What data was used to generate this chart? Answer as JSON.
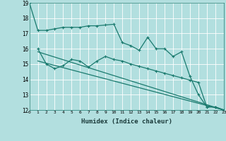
{
  "background_color": "#b2dfdf",
  "grid_color": "#ffffff",
  "line_color": "#1a7a6e",
  "xlabel": "Humidex (Indice chaleur)",
  "xlim": [
    0,
    23
  ],
  "ylim": [
    12,
    19
  ],
  "yticks": [
    12,
    13,
    14,
    15,
    16,
    17,
    18,
    19
  ],
  "xticks": [
    0,
    1,
    2,
    3,
    4,
    5,
    6,
    7,
    8,
    9,
    10,
    11,
    12,
    13,
    14,
    15,
    16,
    17,
    18,
    19,
    20,
    21,
    22,
    23
  ],
  "line1_x": [
    0,
    1,
    2,
    3,
    4,
    5,
    6,
    7,
    8,
    9,
    10,
    11,
    12,
    13,
    14,
    15,
    16,
    17,
    18,
    19,
    20,
    21,
    22,
    23
  ],
  "line1_y": [
    19.0,
    17.2,
    17.2,
    17.3,
    17.4,
    17.4,
    17.4,
    17.5,
    17.5,
    17.55,
    17.6,
    16.4,
    16.2,
    15.9,
    16.75,
    16.0,
    16.0,
    15.5,
    15.8,
    14.2,
    13.0,
    12.2,
    12.2,
    12.0
  ],
  "line2_x": [
    1,
    2,
    3,
    4,
    5,
    6,
    7,
    8,
    9,
    10,
    11,
    12,
    13,
    14,
    15,
    16,
    17,
    18,
    19,
    20,
    21,
    22,
    23
  ],
  "line2_y": [
    16.0,
    15.0,
    14.7,
    14.9,
    15.3,
    15.2,
    14.8,
    15.2,
    15.5,
    15.3,
    15.2,
    15.0,
    14.85,
    14.7,
    14.55,
    14.4,
    14.25,
    14.1,
    13.95,
    13.8,
    12.2,
    12.2,
    12.0
  ],
  "line3_x": [
    1,
    23
  ],
  "line3_y": [
    15.8,
    12.0
  ],
  "line4_x": [
    1,
    23
  ],
  "line4_y": [
    15.2,
    12.0
  ]
}
